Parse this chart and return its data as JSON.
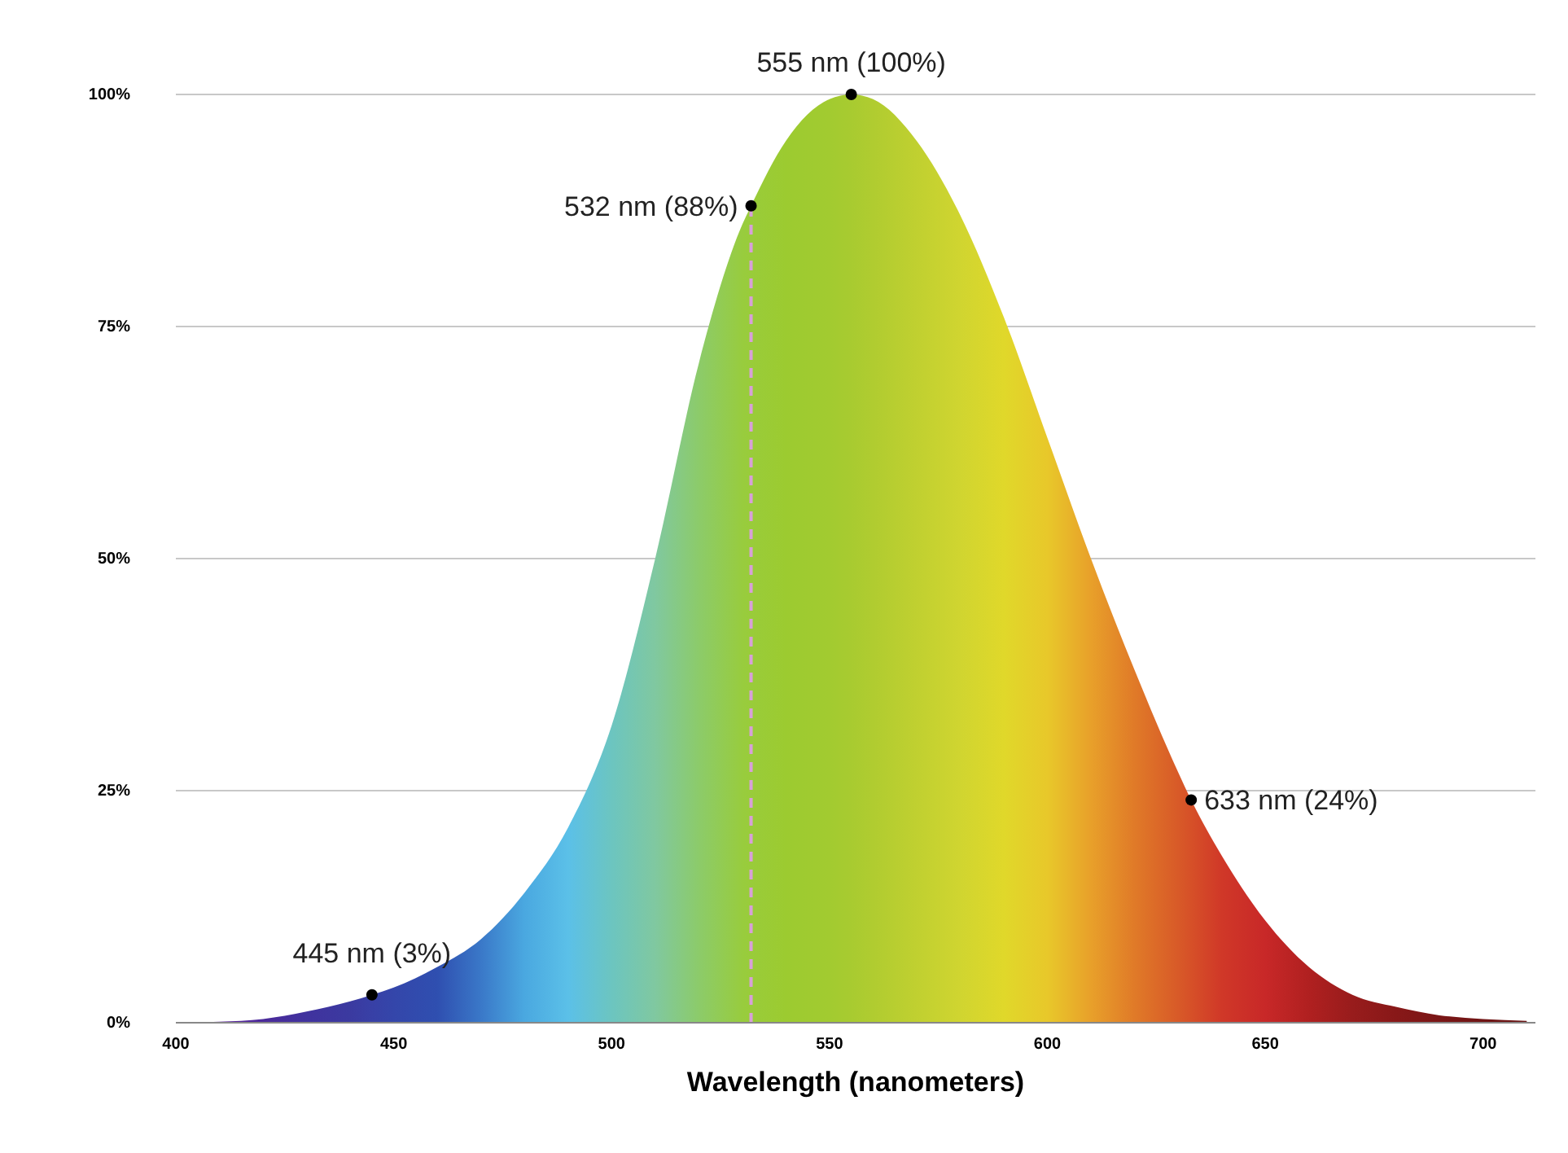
{
  "chart_data": {
    "type": "area",
    "xlabel": "Wavelength (nanometers)",
    "xlim": [
      400,
      712
    ],
    "xticks": [
      400,
      450,
      500,
      550,
      600,
      650,
      700
    ],
    "ylim": [
      0,
      100
    ],
    "yticks": [
      {
        "value": 0,
        "label": "0%"
      },
      {
        "value": 25,
        "label": "25%"
      },
      {
        "value": 50,
        "label": "50%"
      },
      {
        "value": 75,
        "label": "75%"
      },
      {
        "value": 100,
        "label": "100%"
      }
    ],
    "grid": "y",
    "series": [
      {
        "x": [
          400,
          410,
          420,
          430,
          440,
          445,
          450,
          460,
          470,
          480,
          490,
          500,
          510,
          520,
          530,
          532,
          540,
          550,
          555,
          560,
          570,
          580,
          590,
          600,
          610,
          620,
          630,
          633,
          640,
          650,
          660,
          670,
          680,
          690,
          700,
          710
        ],
        "values": [
          0,
          0.1,
          0.4,
          1.2,
          2.3,
          3,
          3.8,
          6,
          9,
          14,
          21,
          32,
          50,
          71,
          86,
          88,
          95,
          99.5,
          100,
          99.5,
          95,
          87,
          76,
          63,
          50,
          38,
          27,
          24,
          18,
          11,
          6,
          3,
          1.7,
          0.8,
          0.4,
          0.2
        ],
        "colors": [
          "#6a1b9a",
          "#5a1f9c",
          "#4b2a9a",
          "#40329e",
          "#3b3aa0",
          "#3840a6",
          "#3446aa",
          "#2f4fb0",
          "#3a78c8",
          "#4aa8e0",
          "#5bc0e8",
          "#6cc5c0",
          "#80c8a0",
          "#8ccb6a",
          "#98cc3e",
          "#99cc3a",
          "#9ccb30",
          "#a2cb30",
          "#a8cb30",
          "#b0cc30",
          "#c0d030",
          "#d0d530",
          "#e0d82a",
          "#e8c82a",
          "#e8a02a",
          "#e07a28",
          "#d85a28",
          "#d65028",
          "#d03828",
          "#c82828",
          "#b02020",
          "#981c1c",
          "#881818",
          "#7a1616",
          "#701414",
          "#681414"
        ]
      },
      {
        "type": "scatter",
        "x": [
          445,
          532,
          555,
          633
        ],
        "values": [
          3,
          88,
          100,
          24
        ],
        "color": "#000000",
        "marker": "circle"
      }
    ],
    "ref_lines": [
      {
        "axis": "x",
        "value": 532,
        "color": "#d8a0d8",
        "line_style": "dashed"
      }
    ],
    "annotations": [
      {
        "text": "445 nm (3%)",
        "x": 445,
        "y": 3
      },
      {
        "text": "532 nm (88%)",
        "x": 532,
        "y": 88
      },
      {
        "text": "555 nm (100%)",
        "x": 555,
        "y": 100
      },
      {
        "text": "633 nm (24%)",
        "x": 633,
        "y": 24
      }
    ]
  }
}
